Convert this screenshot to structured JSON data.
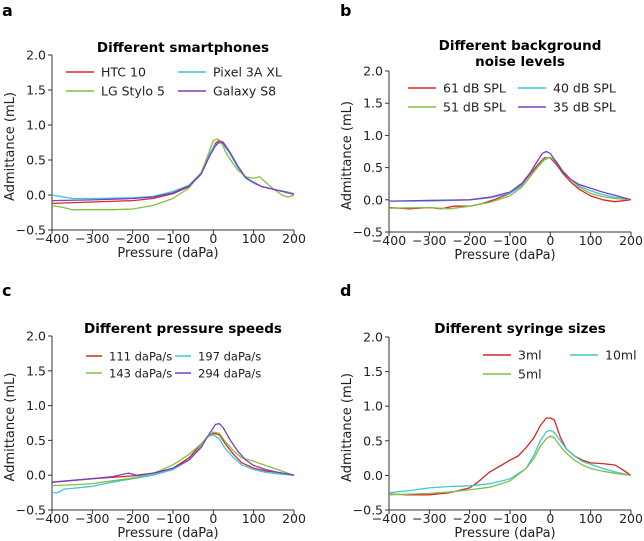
{
  "colors": {
    "red": "#d62728",
    "green": "#7fc241",
    "cyan": "#3fc7d6",
    "purple": "#7b3fc6"
  },
  "chart_data": [
    {
      "letter": "a",
      "type": "line",
      "title": [
        "Different smartphones"
      ],
      "xlabel": "Pressure (daPa)",
      "ylabel": "Admittance (mL)",
      "xlim": [
        -400,
        200
      ],
      "ylim": [
        -0.5,
        2.0
      ],
      "xticks": [
        -400,
        -300,
        -200,
        -100,
        0,
        100,
        200
      ],
      "yticks": [
        -0.5,
        0.0,
        0.5,
        1.0,
        1.5,
        2.0
      ],
      "xtick_labels": [
        "−400",
        "−300",
        "−200",
        "−100",
        "0",
        "100",
        "200"
      ],
      "ytick_labels": [
        "−0.5",
        "0.0",
        "0.5",
        "1.0",
        "1.5",
        "2.0"
      ],
      "legend_layout": "2col",
      "series": [
        {
          "name": "HTC 10",
          "color": "red",
          "x": [
            -400,
            -300,
            -200,
            -150,
            -100,
            -60,
            -30,
            -10,
            5,
            15,
            25,
            40,
            60,
            80,
            100,
            120,
            150,
            180,
            200
          ],
          "y": [
            -0.12,
            -0.1,
            -0.08,
            -0.05,
            0.02,
            0.12,
            0.3,
            0.55,
            0.74,
            0.78,
            0.75,
            0.62,
            0.42,
            0.25,
            0.18,
            0.12,
            0.08,
            0.04,
            0.01
          ]
        },
        {
          "name": "Pixel 3A XL",
          "color": "cyan",
          "x": [
            -400,
            -380,
            -350,
            -300,
            -200,
            -150,
            -100,
            -60,
            -30,
            -10,
            5,
            15,
            25,
            40,
            60,
            80,
            100,
            120,
            150,
            180,
            200
          ],
          "y": [
            0.0,
            -0.02,
            -0.05,
            -0.05,
            -0.04,
            -0.02,
            0.05,
            0.14,
            0.32,
            0.58,
            0.72,
            0.75,
            0.72,
            0.6,
            0.4,
            0.24,
            0.17,
            0.12,
            0.08,
            0.05,
            0.02
          ]
        },
        {
          "name": "LG Stylo 5",
          "color": "green",
          "x": [
            -400,
            -370,
            -350,
            -300,
            -250,
            -200,
            -150,
            -100,
            -60,
            -30,
            -10,
            0,
            10,
            20,
            30,
            45,
            60,
            80,
            100,
            115,
            130,
            150,
            170,
            185,
            200
          ],
          "y": [
            -0.15,
            -0.18,
            -0.21,
            -0.21,
            -0.21,
            -0.2,
            -0.15,
            -0.05,
            0.1,
            0.32,
            0.62,
            0.78,
            0.8,
            0.76,
            0.62,
            0.48,
            0.36,
            0.26,
            0.24,
            0.26,
            0.18,
            0.08,
            0.0,
            -0.03,
            0.0
          ]
        },
        {
          "name": "Galaxy S8",
          "color": "purple",
          "x": [
            -400,
            -300,
            -200,
            -150,
            -100,
            -60,
            -30,
            -10,
            5,
            15,
            25,
            40,
            60,
            80,
            100,
            120,
            150,
            180,
            200
          ],
          "y": [
            -0.08,
            -0.07,
            -0.05,
            -0.03,
            0.03,
            0.13,
            0.3,
            0.55,
            0.7,
            0.76,
            0.74,
            0.62,
            0.42,
            0.25,
            0.18,
            0.12,
            0.08,
            0.04,
            0.01
          ]
        }
      ]
    },
    {
      "letter": "b",
      "type": "line",
      "title": [
        "Different background",
        "noise levels"
      ],
      "xlabel": "Pressure (daPa)",
      "ylabel": "Admittance (mL)",
      "xlim": [
        -400,
        200
      ],
      "ylim": [
        -0.5,
        2.0
      ],
      "xticks": [
        -400,
        -300,
        -200,
        -100,
        0,
        100,
        200
      ],
      "yticks": [
        -0.5,
        0.0,
        0.5,
        1.0,
        1.5,
        2.0
      ],
      "xtick_labels": [
        "−400",
        "−300",
        "−200",
        "−100",
        "0",
        "100",
        "200"
      ],
      "ytick_labels": [
        "−0.5",
        "0.0",
        "0.5",
        "1.0",
        "1.5",
        "2.0"
      ],
      "legend_layout": "2col",
      "series": [
        {
          "name": "61 dB SPL",
          "color": "red",
          "x": [
            -400,
            -350,
            -300,
            -270,
            -240,
            -200,
            -170,
            -140,
            -100,
            -70,
            -50,
            -30,
            -15,
            0,
            15,
            30,
            50,
            70,
            100,
            130,
            160,
            200
          ],
          "y": [
            -0.12,
            -0.14,
            -0.12,
            -0.14,
            -0.1,
            -0.1,
            -0.06,
            0.0,
            0.1,
            0.25,
            0.4,
            0.55,
            0.65,
            0.65,
            0.55,
            0.42,
            0.28,
            0.17,
            0.06,
            0.0,
            -0.03,
            0.0
          ]
        },
        {
          "name": "40 dB SPL",
          "color": "cyan",
          "x": [
            -400,
            -300,
            -200,
            -150,
            -100,
            -70,
            -50,
            -30,
            -15,
            0,
            15,
            30,
            50,
            70,
            100,
            130,
            160,
            200
          ],
          "y": [
            -0.02,
            -0.02,
            0.0,
            0.03,
            0.1,
            0.22,
            0.36,
            0.52,
            0.62,
            0.66,
            0.58,
            0.45,
            0.32,
            0.22,
            0.14,
            0.08,
            0.04,
            0.0
          ]
        },
        {
          "name": "51 dB SPL",
          "color": "green",
          "x": [
            -400,
            -300,
            -250,
            -200,
            -150,
            -100,
            -70,
            -50,
            -30,
            -15,
            0,
            15,
            30,
            50,
            70,
            100,
            130,
            160,
            200
          ],
          "y": [
            -0.13,
            -0.12,
            -0.14,
            -0.1,
            -0.04,
            0.06,
            0.2,
            0.36,
            0.52,
            0.63,
            0.66,
            0.6,
            0.46,
            0.32,
            0.2,
            0.1,
            0.05,
            0.02,
            0.0
          ]
        },
        {
          "name": "35 dB SPL",
          "color": "purple",
          "x": [
            -400,
            -300,
            -200,
            -150,
            -100,
            -70,
            -50,
            -30,
            -20,
            -10,
            0,
            15,
            30,
            50,
            70,
            100,
            130,
            160,
            200
          ],
          "y": [
            -0.02,
            -0.01,
            0.0,
            0.04,
            0.12,
            0.26,
            0.42,
            0.62,
            0.72,
            0.75,
            0.72,
            0.58,
            0.44,
            0.32,
            0.24,
            0.18,
            0.12,
            0.07,
            0.0
          ]
        }
      ]
    },
    {
      "letter": "c",
      "type": "line",
      "title": [
        "Different pressure speeds"
      ],
      "xlabel": "Pressure (daPa)",
      "ylabel": "Admittance (mL)",
      "xlim": [
        -400,
        200
      ],
      "ylim": [
        -0.5,
        2.0
      ],
      "xticks": [
        -400,
        -300,
        -200,
        -100,
        0,
        100,
        200
      ],
      "yticks": [
        -0.5,
        0.0,
        0.5,
        1.0,
        1.5,
        2.0
      ],
      "xtick_labels": [
        "−400",
        "−300",
        "−200",
        "−100",
        "0",
        "100",
        "200"
      ],
      "ytick_labels": [
        "−0.5",
        "0.0",
        "0.5",
        "1.0",
        "1.5",
        "2.0"
      ],
      "legend_layout": "2col-small",
      "series": [
        {
          "name": "111 daPa/s",
          "color": "red",
          "x": [
            -400,
            -300,
            -200,
            -150,
            -100,
            -60,
            -30,
            -15,
            0,
            15,
            30,
            50,
            70,
            100,
            130,
            160,
            200
          ],
          "y": [
            -0.1,
            -0.05,
            -0.01,
            0.02,
            0.1,
            0.25,
            0.45,
            0.55,
            0.6,
            0.58,
            0.45,
            0.3,
            0.18,
            0.1,
            0.06,
            0.04,
            0.0
          ]
        },
        {
          "name": "197 daPa/s",
          "color": "cyan",
          "x": [
            -400,
            -385,
            -370,
            -350,
            -300,
            -250,
            -200,
            -150,
            -100,
            -60,
            -30,
            -15,
            0,
            15,
            30,
            50,
            70,
            100,
            130,
            160,
            200
          ],
          "y": [
            -0.25,
            -0.25,
            -0.2,
            -0.19,
            -0.16,
            -0.1,
            -0.05,
            0.0,
            0.08,
            0.22,
            0.42,
            0.55,
            0.58,
            0.52,
            0.38,
            0.25,
            0.15,
            0.08,
            0.04,
            0.02,
            0.0
          ]
        },
        {
          "name": "143 daPa/s",
          "color": "green",
          "x": [
            -400,
            -350,
            -300,
            -250,
            -200,
            -150,
            -100,
            -60,
            -30,
            -15,
            0,
            15,
            30,
            50,
            70,
            100,
            120,
            150,
            200
          ],
          "y": [
            -0.15,
            -0.14,
            -0.12,
            -0.08,
            -0.04,
            0.02,
            0.15,
            0.3,
            0.45,
            0.55,
            0.62,
            0.6,
            0.48,
            0.35,
            0.25,
            0.2,
            0.16,
            0.1,
            0.0
          ]
        },
        {
          "name": "294 daPa/s",
          "color": "purple",
          "x": [
            -400,
            -300,
            -250,
            -210,
            -190,
            -150,
            -100,
            -60,
            -30,
            -15,
            0,
            5,
            15,
            25,
            40,
            60,
            80,
            100,
            130,
            160,
            200
          ],
          "y": [
            -0.1,
            -0.05,
            -0.02,
            0.03,
            0.0,
            0.03,
            0.1,
            0.22,
            0.4,
            0.55,
            0.68,
            0.73,
            0.74,
            0.68,
            0.52,
            0.35,
            0.22,
            0.14,
            0.08,
            0.04,
            0.0
          ]
        }
      ]
    },
    {
      "letter": "d",
      "type": "line",
      "title": [
        "Different syringe sizes"
      ],
      "xlabel": "Pressure (daPa)",
      "ylabel": "Admittance (mL)",
      "xlim": [
        -400,
        200
      ],
      "ylim": [
        -0.5,
        2.0
      ],
      "xticks": [
        -400,
        -300,
        -200,
        -100,
        0,
        100,
        200
      ],
      "yticks": [
        -0.5,
        0.0,
        0.5,
        1.0,
        1.5,
        2.0
      ],
      "xtick_labels": [
        "−400",
        "−300",
        "−200",
        "−100",
        "0",
        "100",
        "200"
      ],
      "ytick_labels": [
        "−0.5",
        "0.0",
        "0.5",
        "1.0",
        "1.5",
        "2.0"
      ],
      "legend_layout": "syringe",
      "series": [
        {
          "name": "3ml",
          "color": "red",
          "x": [
            -400,
            -350,
            -300,
            -250,
            -200,
            -180,
            -150,
            -120,
            -100,
            -80,
            -60,
            -40,
            -25,
            -10,
            0,
            10,
            25,
            40,
            60,
            80,
            100,
            130,
            160,
            180,
            200
          ],
          "y": [
            -0.27,
            -0.28,
            -0.28,
            -0.25,
            -0.18,
            -0.1,
            0.05,
            0.15,
            0.22,
            0.28,
            0.4,
            0.55,
            0.72,
            0.83,
            0.83,
            0.8,
            0.55,
            0.38,
            0.28,
            0.22,
            0.18,
            0.17,
            0.15,
            0.08,
            0.0
          ]
        },
        {
          "name": "10ml",
          "color": "cyan",
          "x": [
            -400,
            -350,
            -300,
            -250,
            -200,
            -150,
            -100,
            -60,
            -40,
            -25,
            -10,
            0,
            10,
            25,
            40,
            60,
            80,
            100,
            130,
            160,
            200
          ],
          "y": [
            -0.25,
            -0.22,
            -0.18,
            -0.16,
            -0.15,
            -0.12,
            -0.05,
            0.1,
            0.3,
            0.5,
            0.63,
            0.65,
            0.62,
            0.5,
            0.38,
            0.28,
            0.2,
            0.16,
            0.1,
            0.05,
            0.0
          ]
        },
        {
          "name": "5ml",
          "color": "green",
          "x": [
            -400,
            -350,
            -300,
            -250,
            -200,
            -150,
            -100,
            -60,
            -40,
            -25,
            -10,
            0,
            10,
            25,
            40,
            60,
            80,
            100,
            130,
            160,
            200
          ],
          "y": [
            -0.28,
            -0.27,
            -0.26,
            -0.24,
            -0.21,
            -0.17,
            -0.08,
            0.1,
            0.25,
            0.42,
            0.53,
            0.57,
            0.54,
            0.42,
            0.32,
            0.22,
            0.15,
            0.1,
            0.06,
            0.03,
            0.0
          ]
        }
      ]
    }
  ]
}
